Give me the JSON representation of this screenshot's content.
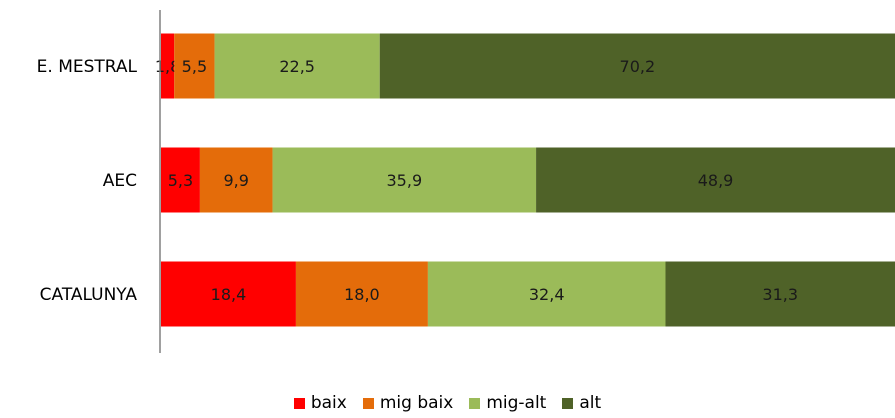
{
  "chart_data": {
    "type": "bar",
    "orientation": "horizontal",
    "stacked": true,
    "percent_stacked": true,
    "categories": [
      "E. MESTRAL",
      "AEC",
      "CATALUNYA"
    ],
    "series": [
      {
        "name": "baix",
        "color": "#ff0000",
        "values": [
          1.8,
          5.3,
          18.4
        ],
        "labels": [
          "1,8",
          "5,3",
          "18,4"
        ]
      },
      {
        "name": "mig baix",
        "color": "#e46c0a",
        "values": [
          5.5,
          9.9,
          18.0
        ],
        "labels": [
          "5,5",
          "9,9",
          "18,0"
        ]
      },
      {
        "name": "mig-alt",
        "color": "#9bbb59",
        "values": [
          22.5,
          35.9,
          32.4
        ],
        "labels": [
          "22,5",
          "35,9",
          "32,4"
        ]
      },
      {
        "name": "alt",
        "color": "#4f6228",
        "values": [
          70.2,
          48.9,
          31.3
        ],
        "labels": [
          "70,2",
          "48,9",
          "31,3"
        ]
      }
    ],
    "title": "",
    "xlabel": "",
    "ylabel": "",
    "grid": false,
    "legend_position": "bottom"
  }
}
